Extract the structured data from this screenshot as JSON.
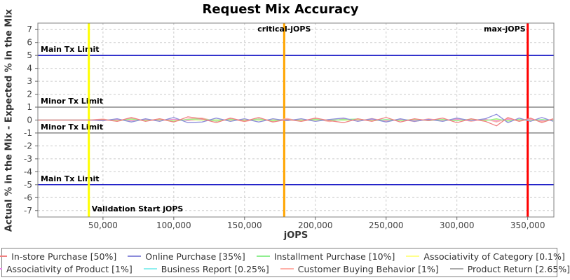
{
  "title": "Request Mix Accuracy",
  "chart_data": {
    "type": "line",
    "title": "Request Mix Accuracy",
    "xlabel": "jOPS",
    "ylabel": "Actual % in the Mix - Expected % in the Mix",
    "xlim": [
      4000,
      368500
    ],
    "ylim": [
      -7.5,
      7.5
    ],
    "x_ticks": [
      50000,
      100000,
      150000,
      200000,
      250000,
      300000,
      350000
    ],
    "y_ticks": [
      -7,
      -6,
      -5,
      -4,
      -3,
      -2,
      -1,
      0,
      1,
      2,
      3,
      4,
      5,
      6,
      7
    ],
    "grid": "dashed",
    "legend_position": "bottom",
    "marker_lines_horizontal": [
      {
        "y": 5,
        "label": "Main Tx Limit",
        "color": "#0000C0"
      },
      {
        "y": 1,
        "label": "Minor Tx Limit",
        "color": "#808080"
      },
      {
        "y": -1,
        "label": "Minor Tx Limit",
        "color": "#808080"
      },
      {
        "y": -5,
        "label": "Main Tx Limit",
        "color": "#0000C0"
      }
    ],
    "marker_lines_vertical": [
      {
        "x": 40000,
        "label": "Validation Start jOPS",
        "color": "#FFFF00",
        "label_pos": "bottom-right"
      },
      {
        "x": 178000,
        "label": "critical-jOPS",
        "color": "#FFA500",
        "label_pos": "top-center"
      },
      {
        "x": 350000,
        "label": "max-jOPS",
        "color": "#FF0000",
        "label_pos": "top-left"
      }
    ],
    "x": [
      4000,
      40000,
      50000,
      60000,
      70000,
      80000,
      90000,
      100000,
      110000,
      120000,
      130000,
      140000,
      150000,
      160000,
      170000,
      180000,
      190000,
      200000,
      210000,
      220000,
      230000,
      240000,
      250000,
      260000,
      270000,
      280000,
      290000,
      300000,
      310000,
      320000,
      328000,
      336000,
      344000,
      352000,
      360000,
      368000
    ],
    "series": [
      {
        "name": "In-store Purchase [50%]",
        "color": "#F08080",
        "y": [
          0,
          0,
          0.05,
          -0.1,
          0.2,
          -0.1,
          0.1,
          -0.15,
          0.25,
          0.1,
          -0.2,
          0.15,
          -0.1,
          0.2,
          -0.15,
          0.05,
          -0.1,
          0.15,
          -0.05,
          -0.2,
          0.1,
          -0.1,
          0.2,
          -0.15,
          0.1,
          -0.05,
          0.15,
          -0.2,
          0.1,
          -0.1,
          -0.45,
          0.2,
          -0.1,
          0.15,
          -0.2,
          0.1
        ]
      },
      {
        "name": "Online Purchase [35%]",
        "color": "#8C8CDB",
        "y": [
          0,
          0,
          -0.05,
          0.1,
          -0.15,
          0.1,
          -0.1,
          0.2,
          -0.2,
          -0.15,
          0.15,
          -0.1,
          0.1,
          -0.15,
          0.1,
          -0.05,
          0.1,
          -0.1,
          0.05,
          0.15,
          -0.1,
          0.1,
          -0.15,
          0.1,
          -0.1,
          0.05,
          -0.1,
          0.15,
          -0.05,
          0.1,
          0.45,
          -0.2,
          0.15,
          -0.1,
          0.2,
          -0.1
        ]
      },
      {
        "name": "Installment Purchase [10%]",
        "color": "#90EE90",
        "y": [
          0,
          0,
          0.03,
          -0.06,
          0.08,
          -0.05,
          0.06,
          -0.08,
          0.05,
          0.1,
          -0.08,
          0.06,
          -0.05,
          0.08,
          -0.06,
          0.04,
          -0.05,
          0.06,
          -0.04,
          0.05,
          0.08,
          -0.06,
          0.04,
          -0.05,
          0.06,
          -0.04,
          0.05,
          -0.06,
          0.08,
          -0.05,
          0.1,
          -0.08,
          0.05,
          -0.06,
          0.04,
          -0.03
        ]
      },
      {
        "name": "Associativity of Category [0.1%]",
        "color": "#FFFF8C",
        "y": [
          0,
          0,
          0.01,
          -0.02,
          0.02,
          -0.01,
          0.01,
          -0.02,
          0.02,
          -0.01,
          0.01,
          -0.02,
          0.02,
          -0.01,
          0.01,
          -0.02,
          0.01,
          -0.01,
          0.02,
          -0.01,
          0.01,
          -0.02,
          0.01,
          -0.01,
          0.02,
          -0.01,
          0.01,
          -0.02,
          0.01,
          -0.01,
          0.02,
          -0.02,
          0.01,
          -0.01,
          0.02,
          -0.01
        ]
      },
      {
        "name": "Associativity of Product [1%]",
        "color": "#EE82EE",
        "y": [
          0,
          0,
          -0.03,
          0.04,
          -0.05,
          0.03,
          -0.04,
          0.05,
          -0.03,
          0.04,
          -0.05,
          0.03,
          -0.04,
          0.05,
          -0.03,
          0.04,
          -0.05,
          0.03,
          -0.04,
          0.05,
          -0.03,
          0.04,
          -0.05,
          0.03,
          -0.04,
          0.05,
          -0.03,
          0.04,
          -0.05,
          0.03,
          -0.06,
          0.05,
          -0.04,
          0.03,
          -0.05,
          0.04
        ]
      },
      {
        "name": "Business Report [0.25%]",
        "color": "#8FEFEF",
        "y": [
          0,
          0,
          0.02,
          -0.03,
          0.04,
          -0.02,
          0.03,
          -0.04,
          0.02,
          -0.03,
          0.04,
          -0.02,
          0.03,
          -0.04,
          0.02,
          -0.03,
          0.04,
          -0.02,
          0.03,
          -0.04,
          0.02,
          -0.03,
          0.04,
          -0.02,
          0.03,
          -0.04,
          0.02,
          -0.03,
          0.04,
          -0.02,
          0.05,
          -0.04,
          0.03,
          -0.02,
          0.04,
          -0.03
        ]
      },
      {
        "name": "Customer Buying Behavior [1%]",
        "color": "#FFB0A8",
        "y": [
          0,
          0,
          0.08,
          -0.1,
          0.12,
          -0.08,
          0.1,
          -0.12,
          0.08,
          0.15,
          -0.1,
          0.08,
          -0.12,
          0.1,
          -0.08,
          0.12,
          -0.1,
          0.08,
          -0.12,
          0.1,
          -0.08,
          0.12,
          -0.1,
          0.08,
          -0.12,
          0.1,
          -0.08,
          0.12,
          -0.1,
          0.08,
          -0.15,
          0.12,
          -0.1,
          0.08,
          -0.12,
          0.1
        ]
      },
      {
        "name": "Product Return [2.65%]",
        "color": "#ABABAB",
        "y": [
          0,
          0,
          -0.04,
          0.05,
          -0.06,
          0.04,
          -0.05,
          0.06,
          -0.04,
          0.05,
          -0.06,
          0.04,
          -0.05,
          0.06,
          -0.04,
          0.05,
          -0.06,
          0.04,
          -0.05,
          0.06,
          -0.04,
          0.05,
          -0.06,
          0.04,
          -0.05,
          0.06,
          -0.04,
          0.05,
          -0.06,
          0.04,
          -0.07,
          0.06,
          -0.05,
          0.04,
          -0.06,
          0.05
        ]
      }
    ],
    "legend_rows": [
      [
        0,
        1,
        2,
        3
      ],
      [
        4,
        5,
        6,
        7
      ]
    ],
    "colors": {
      "grid": "#CCCCCC",
      "plot_border": "#808080",
      "tick": "#666666",
      "tick_label": "#444444",
      "annotation_text": "#000000"
    }
  }
}
